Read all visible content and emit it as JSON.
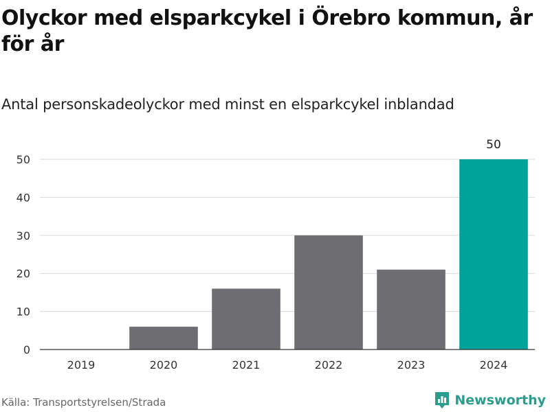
{
  "title": "Olyckor med elsparkcykel i Örebro kommun, år för år",
  "subtitle": "Antal personskadeolyckor med minst en elsparkcykel inblandad",
  "source": "Källa: Transportstyrelsen/Strada",
  "brand": {
    "name": "Newsworthy",
    "icon": "newsworthy-logo-icon",
    "color": "#2a9d8f"
  },
  "colors": {
    "bar": "#6e6d72",
    "highlight": "#00a39a",
    "grid": "#d9d9d9"
  },
  "chart_data": {
    "type": "bar",
    "categories": [
      "2019",
      "2020",
      "2021",
      "2022",
      "2023",
      "2024"
    ],
    "values": [
      0,
      6,
      16,
      30,
      21,
      50
    ],
    "highlight_index": 5,
    "data_labels": [
      {
        "index": 5,
        "text": "50"
      }
    ],
    "title": "",
    "xlabel": "",
    "ylabel": "",
    "ylim": [
      0,
      50
    ],
    "yticks": [
      "0",
      "10",
      "20",
      "30",
      "40",
      "50"
    ],
    "grid": true,
    "legend": "none"
  }
}
